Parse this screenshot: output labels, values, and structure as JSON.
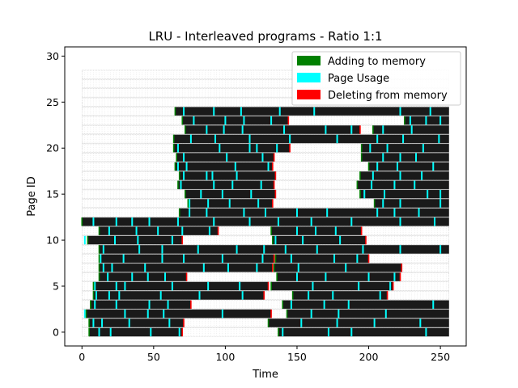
{
  "chart_data": {
    "type": "heatmap",
    "title": "LRU - Interleaved programs - Ratio 1:1",
    "xlabel": "Time",
    "ylabel": "Page ID",
    "xlim": [
      -12,
      268
    ],
    "ylim": [
      -1.5,
      31.0
    ],
    "xticks": [
      0,
      50,
      100,
      150,
      200,
      250
    ],
    "yticks": [
      0,
      5,
      10,
      15,
      20,
      25,
      30
    ],
    "time_range": [
      0,
      256
    ],
    "page_count": 29,
    "grid": false,
    "legend_position": "top-right",
    "legend": [
      {
        "label": "Adding to memory",
        "color": "#008000"
      },
      {
        "label": "Page Usage",
        "color": "#00ffff"
      },
      {
        "label": "Deleting from memory",
        "color": "#ff0000"
      }
    ],
    "colors": {
      "resident": "#1a1a1a",
      "empty": "#ffffff",
      "usage": "#00ffff",
      "add": "#008000",
      "delete": "#ff0000"
    },
    "resident_intervals": [
      {
        "page": 0,
        "spans": [
          [
            5,
            70
          ],
          [
            137,
            256
          ]
        ]
      },
      {
        "page": 1,
        "spans": [
          [
            5,
            71
          ],
          [
            130,
            256
          ]
        ]
      },
      {
        "page": 2,
        "spans": [
          [
            3,
            132
          ],
          [
            143,
            256
          ]
        ]
      },
      {
        "page": 3,
        "spans": [
          [
            6,
            76
          ],
          [
            140,
            256
          ]
        ]
      },
      {
        "page": 4,
        "spans": [
          [
            8,
            127
          ],
          [
            147,
            213
          ]
        ]
      },
      {
        "page": 5,
        "spans": [
          [
            8,
            130
          ],
          [
            132,
            217
          ]
        ]
      },
      {
        "page": 6,
        "spans": [
          [
            12,
            73
          ],
          [
            136,
            222
          ]
        ]
      },
      {
        "page": 7,
        "spans": [
          [
            12,
            133
          ],
          [
            134,
            223
          ]
        ]
      },
      {
        "page": 8,
        "spans": [
          [
            12,
            134
          ],
          [
            135,
            200
          ]
        ]
      },
      {
        "page": 9,
        "spans": [
          [
            12,
            256
          ]
        ]
      },
      {
        "page": 10,
        "spans": [
          [
            4,
            70
          ],
          [
            133,
            198
          ]
        ]
      },
      {
        "page": 11,
        "spans": [
          [
            12,
            95
          ],
          [
            132,
            195
          ]
        ]
      },
      {
        "page": 12,
        "spans": [
          [
            0,
            256
          ]
        ]
      },
      {
        "page": 13,
        "spans": [
          [
            68,
            256
          ]
        ]
      },
      {
        "page": 14,
        "spans": [
          [
            74,
            133
          ],
          [
            204,
            256
          ]
        ]
      },
      {
        "page": 15,
        "spans": [
          [
            72,
            135
          ],
          [
            194,
            256
          ]
        ]
      },
      {
        "page": 16,
        "spans": [
          [
            67,
            134
          ],
          [
            192,
            256
          ]
        ]
      },
      {
        "page": 17,
        "spans": [
          [
            68,
            135
          ],
          [
            194,
            256
          ]
        ]
      },
      {
        "page": 18,
        "spans": [
          [
            65,
            133
          ],
          [
            200,
            256
          ]
        ]
      },
      {
        "page": 19,
        "spans": [
          [
            66,
            134
          ],
          [
            195,
            256
          ]
        ]
      },
      {
        "page": 20,
        "spans": [
          [
            64,
            145
          ],
          [
            195,
            256
          ]
        ]
      },
      {
        "page": 21,
        "spans": [
          [
            64,
            256
          ]
        ]
      },
      {
        "page": 22,
        "spans": [
          [
            72,
            194
          ],
          [
            203,
            256
          ]
        ]
      },
      {
        "page": 23,
        "spans": [
          [
            70,
            144
          ],
          [
            225,
            256
          ]
        ]
      },
      {
        "page": 24,
        "spans": [
          [
            65,
            256
          ]
        ]
      }
    ],
    "usage_marks": [
      {
        "page": 0,
        "t": [
          12,
          20,
          48,
          68,
          140,
          172,
          188,
          240
        ]
      },
      {
        "page": 1,
        "t": [
          8,
          14,
          33,
          61,
          153,
          178,
          204,
          236
        ]
      },
      {
        "page": 2,
        "t": [
          2,
          30,
          46,
          57,
          98,
          160,
          179,
          212
        ]
      },
      {
        "page": 3,
        "t": [
          9,
          24,
          47,
          60,
          146,
          169,
          186,
          245
        ]
      },
      {
        "page": 4,
        "t": [
          10,
          19,
          26,
          55,
          82,
          112,
          158,
          175,
          208
        ]
      },
      {
        "page": 5,
        "t": [
          9,
          24,
          30,
          63,
          88,
          110,
          161,
          193,
          215
        ]
      },
      {
        "page": 6,
        "t": [
          18,
          35,
          46,
          58,
          150,
          170,
          200,
          218
        ]
      },
      {
        "page": 7,
        "t": [
          15,
          21,
          44,
          85,
          102,
          122,
          151,
          184
        ]
      },
      {
        "page": 8,
        "t": [
          13,
          29,
          56,
          71,
          98,
          126,
          146,
          176,
          192
        ]
      },
      {
        "page": 9,
        "t": [
          15,
          40,
          56,
          81,
          108,
          127,
          142,
          164,
          196,
          222,
          250
        ]
      },
      {
        "page": 10,
        "t": [
          2,
          23,
          39,
          63,
          135,
          154,
          180
        ]
      },
      {
        "page": 11,
        "t": [
          19,
          38,
          53,
          70,
          89,
          150,
          163,
          177
        ]
      },
      {
        "page": 12,
        "t": [
          8,
          24,
          35,
          47,
          67,
          92,
          117,
          137,
          160,
          188,
          222,
          246
        ]
      },
      {
        "page": 13,
        "t": [
          75,
          87,
          113,
          128,
          150,
          171,
          206,
          218,
          235
        ]
      },
      {
        "page": 14,
        "t": [
          75,
          88,
          103,
          123,
          210,
          222,
          250
        ]
      },
      {
        "page": 15,
        "t": [
          83,
          98,
          118,
          197,
          211,
          241,
          250
        ]
      },
      {
        "page": 16,
        "t": [
          69,
          92,
          105,
          125,
          202,
          218,
          232
        ]
      },
      {
        "page": 17,
        "t": [
          71,
          87,
          91,
          108,
          203,
          222,
          237
        ]
      },
      {
        "page": 18,
        "t": [
          67,
          73,
          107,
          130,
          206,
          220,
          245
        ]
      },
      {
        "page": 19,
        "t": [
          71,
          101,
          126,
          210,
          222,
          233
        ]
      },
      {
        "page": 20,
        "t": [
          67,
          96,
          117,
          122,
          136,
          201,
          213,
          238
        ]
      },
      {
        "page": 21,
        "t": [
          76,
          93,
          117,
          145,
          178,
          206,
          224,
          249
        ]
      },
      {
        "page": 22,
        "t": [
          87,
          99,
          112,
          141,
          170,
          188,
          210,
          230
        ]
      },
      {
        "page": 23,
        "t": [
          78,
          100,
          113,
          132,
          229,
          240,
          250
        ]
      },
      {
        "page": 24,
        "t": [
          71,
          92,
          111,
          138,
          162,
          222,
          243
        ]
      }
    ]
  }
}
